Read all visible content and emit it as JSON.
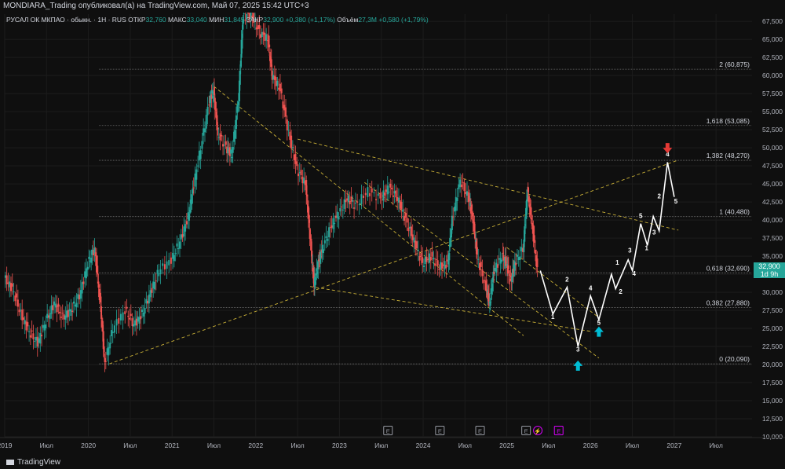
{
  "header": {
    "publisher_line": "MONDIARA_Trading опубликовал(а) на TradingView.com, Май 07, 2025 15:42 UTC+3"
  },
  "legend": {
    "symbol": "РУСАЛ ОК МКПАО · обыкн. · 1Н · RUS",
    "open_label": "ОТКР",
    "open_value": "32,760",
    "high_label": "МАКС",
    "high_value": "33,040",
    "low_label": "МИН",
    "low_value": "31,845",
    "close_label": "ЗАКР",
    "close_value": "32,900",
    "change_value": "+0,380 (+1,17%)",
    "volume_label": "Объём",
    "volume_value": "27,3M",
    "volume_change": "+0,580 (+1,79%)"
  },
  "current_price": {
    "value": "32,900",
    "countdown": "1d 9h",
    "color": "#26a69a"
  },
  "branding": {
    "logo_text": "TradingView"
  },
  "event_markers": [
    "E",
    "E",
    "E",
    "E",
    "⚡",
    "E"
  ],
  "chart_data": {
    "type": "line",
    "price_axis": {
      "min": 10000,
      "max": 68500,
      "ticks": [
        "67,500",
        "65,000",
        "62,500",
        "60,000",
        "57,500",
        "55,000",
        "52,500",
        "50,000",
        "47,500",
        "45,000",
        "42,500",
        "40,000",
        "37,500",
        "35,000",
        "32,500",
        "30,000",
        "27,500",
        "25,000",
        "22,500",
        "20,000",
        "17,500",
        "15,000",
        "12,500",
        "10,000"
      ]
    },
    "time_axis": {
      "labels": [
        "2019",
        "Июл",
        "2020",
        "Июл",
        "2021",
        "Июл",
        "2022",
        "Июл",
        "2023",
        "Июл",
        "2024",
        "Июл",
        "2025",
        "Июл",
        "2026",
        "Июл",
        "2027",
        "Июл"
      ],
      "x_years": [
        2019.0,
        2019.5,
        2020.0,
        2020.5,
        2021.0,
        2021.5,
        2022.0,
        2022.5,
        2023.0,
        2023.5,
        2024.0,
        2024.5,
        2025.0,
        2025.5,
        2026.0,
        2026.5,
        2027.0,
        2027.5
      ]
    },
    "fib_levels": [
      {
        "label": "2 (60,875)",
        "value": 60875
      },
      {
        "label": "1,618 (53,085)",
        "value": 53085
      },
      {
        "label": "1,382 (48,270)",
        "value": 48270
      },
      {
        "label": "1 (40,480)",
        "value": 40480
      },
      {
        "label": "0,618 (32,690)",
        "value": 32690
      },
      {
        "label": "0,382 (27,880)",
        "value": 27880
      },
      {
        "label": "0 (20,090)",
        "value": 20090
      }
    ],
    "price_series": {
      "name": "",
      "points": [
        [
          2019.0,
          32000
        ],
        [
          2019.1,
          30500
        ],
        [
          2019.2,
          27000
        ],
        [
          2019.3,
          24500
        ],
        [
          2019.4,
          23000
        ],
        [
          2019.5,
          26000
        ],
        [
          2019.6,
          28500
        ],
        [
          2019.7,
          26500
        ],
        [
          2019.8,
          27500
        ],
        [
          2019.9,
          29500
        ],
        [
          2020.0,
          34000
        ],
        [
          2020.08,
          36000
        ],
        [
          2020.15,
          28000
        ],
        [
          2020.2,
          20100
        ],
        [
          2020.3,
          25000
        ],
        [
          2020.45,
          27500
        ],
        [
          2020.55,
          25500
        ],
        [
          2020.65,
          27000
        ],
        [
          2020.75,
          30000
        ],
        [
          2020.85,
          33000
        ],
        [
          2021.0,
          34500
        ],
        [
          2021.1,
          37000
        ],
        [
          2021.2,
          40500
        ],
        [
          2021.25,
          44000
        ],
        [
          2021.35,
          50000
        ],
        [
          2021.45,
          56500
        ],
        [
          2021.5,
          57800
        ],
        [
          2021.55,
          52000
        ],
        [
          2021.65,
          50000
        ],
        [
          2021.72,
          49000
        ],
        [
          2021.8,
          57000
        ],
        [
          2021.85,
          68000
        ],
        [
          2021.95,
          68500
        ],
        [
          2022.05,
          66000
        ],
        [
          2022.15,
          65000
        ],
        [
          2022.2,
          60000
        ],
        [
          2022.3,
          58000
        ],
        [
          2022.4,
          52000
        ],
        [
          2022.5,
          47000
        ],
        [
          2022.6,
          45000
        ],
        [
          2022.65,
          38000
        ],
        [
          2022.7,
          31000
        ],
        [
          2022.75,
          34000
        ],
        [
          2022.8,
          36000
        ],
        [
          2022.9,
          39000
        ],
        [
          2023.0,
          41000
        ],
        [
          2023.1,
          43000
        ],
        [
          2023.2,
          42000
        ],
        [
          2023.35,
          44000
        ],
        [
          2023.5,
          43000
        ],
        [
          2023.6,
          44500
        ],
        [
          2023.7,
          43000
        ],
        [
          2023.8,
          40000
        ],
        [
          2023.9,
          37000
        ],
        [
          2024.0,
          34000
        ],
        [
          2024.1,
          35000
        ],
        [
          2024.2,
          33500
        ],
        [
          2024.3,
          34000
        ],
        [
          2024.35,
          40000
        ],
        [
          2024.45,
          45500
        ],
        [
          2024.55,
          43000
        ],
        [
          2024.6,
          40000
        ],
        [
          2024.65,
          35000
        ],
        [
          2024.75,
          31000
        ],
        [
          2024.8,
          28500
        ],
        [
          2024.85,
          33000
        ],
        [
          2024.95,
          35000
        ],
        [
          2025.0,
          34000
        ],
        [
          2025.05,
          31500
        ],
        [
          2025.1,
          34000
        ],
        [
          2025.2,
          36000
        ],
        [
          2025.25,
          44000
        ],
        [
          2025.3,
          40000
        ],
        [
          2025.37,
          32900
        ]
      ]
    },
    "projection_path": {
      "points": [
        [
          2025.4,
          33000
        ],
        [
          2025.55,
          27000
        ],
        [
          2025.72,
          30700
        ],
        [
          2025.85,
          22500
        ],
        [
          2026.0,
          29500
        ],
        [
          2026.1,
          26200
        ],
        [
          2026.25,
          32500
        ],
        [
          2026.3,
          30500
        ],
        [
          2026.45,
          34500
        ],
        [
          2026.5,
          33000
        ],
        [
          2026.6,
          39500
        ],
        [
          2026.68,
          36500
        ],
        [
          2026.75,
          40500
        ],
        [
          2026.82,
          38500
        ],
        [
          2026.92,
          48000
        ],
        [
          2027.0,
          43200
        ]
      ],
      "wave_labels": [
        {
          "text": "1",
          "x": 2025.55,
          "y": 26300
        },
        {
          "text": "2",
          "x": 2025.72,
          "y": 31500
        },
        {
          "text": "3",
          "x": 2025.85,
          "y": 21800
        },
        {
          "text": "4",
          "x": 2026.0,
          "y": 30300
        },
        {
          "text": "5",
          "x": 2026.1,
          "y": 25500
        },
        {
          "text": "1",
          "x": 2026.32,
          "y": 33800
        },
        {
          "text": "2",
          "x": 2026.36,
          "y": 29800
        },
        {
          "text": "3",
          "x": 2026.47,
          "y": 35500
        },
        {
          "text": "4",
          "x": 2026.52,
          "y": 32300
        },
        {
          "text": "5",
          "x": 2026.6,
          "y": 40300
        },
        {
          "text": "1",
          "x": 2026.67,
          "y": 35800
        },
        {
          "text": "3",
          "x": 2026.76,
          "y": 38000
        },
        {
          "text": "2",
          "x": 2026.82,
          "y": 43000
        },
        {
          "text": "4",
          "x": 2026.92,
          "y": 48800
        },
        {
          "text": "5",
          "x": 2027.02,
          "y": 42300
        }
      ],
      "arrows": [
        {
          "kind": "up",
          "color": "#00bcd4",
          "x": 2025.85,
          "y": 19800
        },
        {
          "kind": "up",
          "color": "#00bcd4",
          "x": 2026.1,
          "y": 24500
        },
        {
          "kind": "down",
          "color": "#e53935",
          "x": 2026.92,
          "y": 50000
        }
      ]
    },
    "trend_lines": [
      {
        "from": [
          2020.25,
          20100
        ],
        "to": [
          2027.05,
          48300
        ]
      },
      {
        "from": [
          2021.5,
          58500
        ],
        "to": [
          2025.2,
          24000
        ]
      },
      {
        "from": [
          2022.5,
          51200
        ],
        "to": [
          2027.05,
          38600
        ]
      },
      {
        "from": [
          2022.65,
          30800
        ],
        "to": [
          2026.0,
          24600
        ]
      },
      {
        "from": [
          2025.0,
          36200
        ],
        "to": [
          2026.1,
          26500
        ]
      },
      {
        "from": [
          2023.3,
          45200
        ],
        "to": [
          2026.1,
          20900
        ]
      }
    ],
    "colors": {
      "up": "#26a69a",
      "down": "#ef5350",
      "trend": "#c9b037",
      "fib": "#6b6b6b",
      "projection": "#ffffff"
    }
  }
}
